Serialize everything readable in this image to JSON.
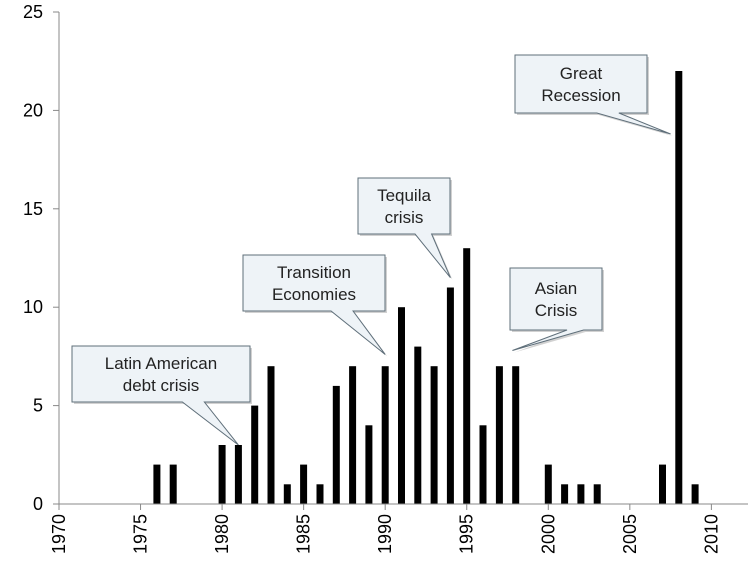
{
  "chart_data": {
    "type": "bar",
    "x": [
      1976,
      1977,
      1980,
      1981,
      1982,
      1983,
      1984,
      1985,
      1986,
      1987,
      1988,
      1989,
      1990,
      1991,
      1992,
      1993,
      1994,
      1995,
      1996,
      1997,
      1998,
      2000,
      2001,
      2002,
      2003,
      2007,
      2008,
      2009
    ],
    "values": [
      2,
      2,
      3,
      3,
      5,
      7,
      1,
      2,
      1,
      6,
      7,
      4,
      7,
      10,
      8,
      7,
      11,
      13,
      4,
      7,
      7,
      2,
      1,
      1,
      1,
      2,
      22,
      1
    ],
    "xlim": [
      1970,
      2012
    ],
    "ylim": [
      0,
      25
    ],
    "xticks": [
      "1970",
      "1975",
      "1980",
      "1985",
      "1990",
      "1995",
      "2000",
      "2005",
      "2010"
    ],
    "yticks": [
      "0",
      "5",
      "10",
      "15",
      "20",
      "25"
    ],
    "bar_color": "#000000",
    "grid": false,
    "title": "",
    "xlabel": "",
    "ylabel": "",
    "annotations": [
      {
        "lines": [
          "Latin American",
          "debt crisis"
        ],
        "target_year": 1981,
        "target_value": 3
      },
      {
        "lines": [
          "Transition",
          "Economies"
        ],
        "target_year": 1990,
        "target_value": 7.6
      },
      {
        "lines": [
          "Tequila",
          "crisis"
        ],
        "target_year": 1994,
        "target_value": 11.5
      },
      {
        "lines": [
          "Asian",
          "Crisis"
        ],
        "target_year": 1997.8,
        "target_value": 7.8
      },
      {
        "lines": [
          "Great",
          "Recession"
        ],
        "target_year": 2007.5,
        "target_value": 18.8
      }
    ]
  }
}
